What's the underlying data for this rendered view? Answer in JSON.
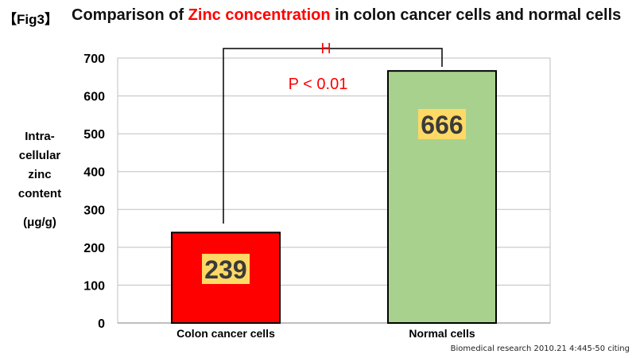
{
  "figure": {
    "tag": "【Fig3】",
    "title_prefix": "Comparison of ",
    "title_highlight": "Zinc concentration",
    "title_suffix": " in colon cancer cells and normal cells",
    "source": "Biomedical research 2010.21 4:445-50 citing"
  },
  "yaxis_label": {
    "line1": "Intra-",
    "line2": "cellular",
    "line3": "zinc",
    "line4": "content",
    "unit": "(μg/g)"
  },
  "significance": {
    "p_text": "P < 0.01",
    "marker": "H"
  },
  "colors": {
    "cancer_bar": "#ff0000",
    "normal_bar": "#a9d18e",
    "label_box": "#ffd966",
    "highlight": "#ff0000"
  },
  "chart_data": {
    "type": "bar",
    "categories": [
      "Colon cancer cells",
      "Normal cells"
    ],
    "values": [
      239,
      666
    ],
    "data_labels": [
      "239",
      "666"
    ],
    "ylim": [
      0,
      700
    ],
    "yticks": [
      0,
      100,
      200,
      300,
      400,
      500,
      600,
      700
    ],
    "grid": true
  }
}
